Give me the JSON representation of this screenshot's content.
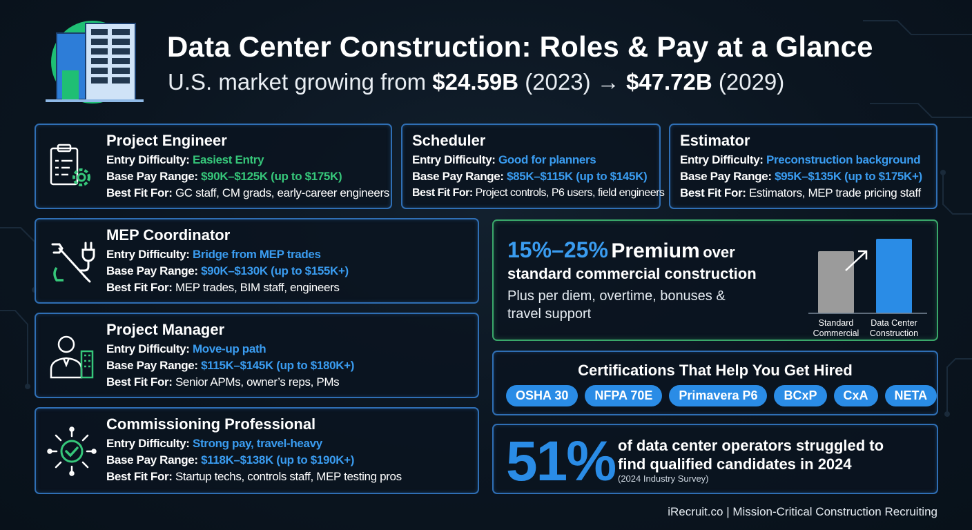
{
  "header": {
    "title": "Data Center Construction: Roles & Pay at a Glance",
    "subtitle_prefix": "U.S. market growing from ",
    "start_value": "$24.59B",
    "start_year": " (2023) → ",
    "end_value": "$47.72B",
    "end_year": " (2029)"
  },
  "labels": {
    "entry": "Entry Difficulty:",
    "pay": "Base Pay Range:",
    "fit": "Best Fit For:"
  },
  "roles": [
    {
      "title": "Project Engineer",
      "icon": "clipboard-gear-icon",
      "entry": "Easiest Entry",
      "pay": "$90K–$125K (up to $175K)",
      "fit": "GC staff, CM grads, early-career engineers"
    },
    {
      "title": "Scheduler",
      "icon": "",
      "entry": "Good for planners",
      "pay": "$85K–$115K (up to $145K)",
      "fit": "Project controls, P6 users, field engineers"
    },
    {
      "title": "Estimator",
      "icon": "",
      "entry": "Preconstruction background",
      "pay": "$95K–$135K (up to $175K+)",
      "fit": "Estimators, MEP trade pricing staff"
    },
    {
      "title": "MEP Coordinator",
      "icon": "wrench-plug-icon",
      "entry": "Bridge from MEP trades",
      "pay": "$90K–$130K (up to $155K+)",
      "fit": "MEP trades, BIM staff, engineers"
    },
    {
      "title": "Project Manager",
      "icon": "manager-building-icon",
      "entry": "Move-up path",
      "pay": "$115K–$145K (up to $180K+)",
      "fit": "Senior APMs, owner’s reps, PMs"
    },
    {
      "title": "Commissioning Professional",
      "icon": "checkmark-tools-icon",
      "entry": "Strong pay, travel-heavy",
      "pay": "$118K–$138K (up to $190K+)",
      "fit": "Startup techs, controls staff, MEP testing pros"
    }
  ],
  "premium": {
    "percent": "15%–25%",
    "word": "Premium",
    "over": "over",
    "line2": "standard commercial construction",
    "line3": "Plus per diem, overtime, bonuses & travel support"
  },
  "chart_data": {
    "type": "bar",
    "categories": [
      "Standard Commercial",
      "Data Center Construction"
    ],
    "cat1_line1": "Standard",
    "cat1_line2": "Commercial",
    "cat2_line1": "Data Center",
    "cat2_line2": "Construction",
    "values": [
      1.0,
      1.2
    ],
    "colors": [
      "#9b9b9b",
      "#2a8ce6"
    ]
  },
  "certifications": {
    "title": "Certifications That Help You Get Hired",
    "items": [
      "OSHA 30",
      "NFPA 70E",
      "Primavera P6",
      "BCxP",
      "CxA",
      "NETA"
    ]
  },
  "stat": {
    "value": "51%",
    "text": "of data center operators struggled to find qualified candidates in 2024",
    "source": "(2024 Industry Survey)"
  },
  "footer": "iRecruit.co | Mission-Critical Construction Recruiting",
  "colors": {
    "accent_blue": "#2a8ce6",
    "accent_green": "#36c77a",
    "card_border": "#2f6fb5",
    "background": "#0b1520"
  }
}
